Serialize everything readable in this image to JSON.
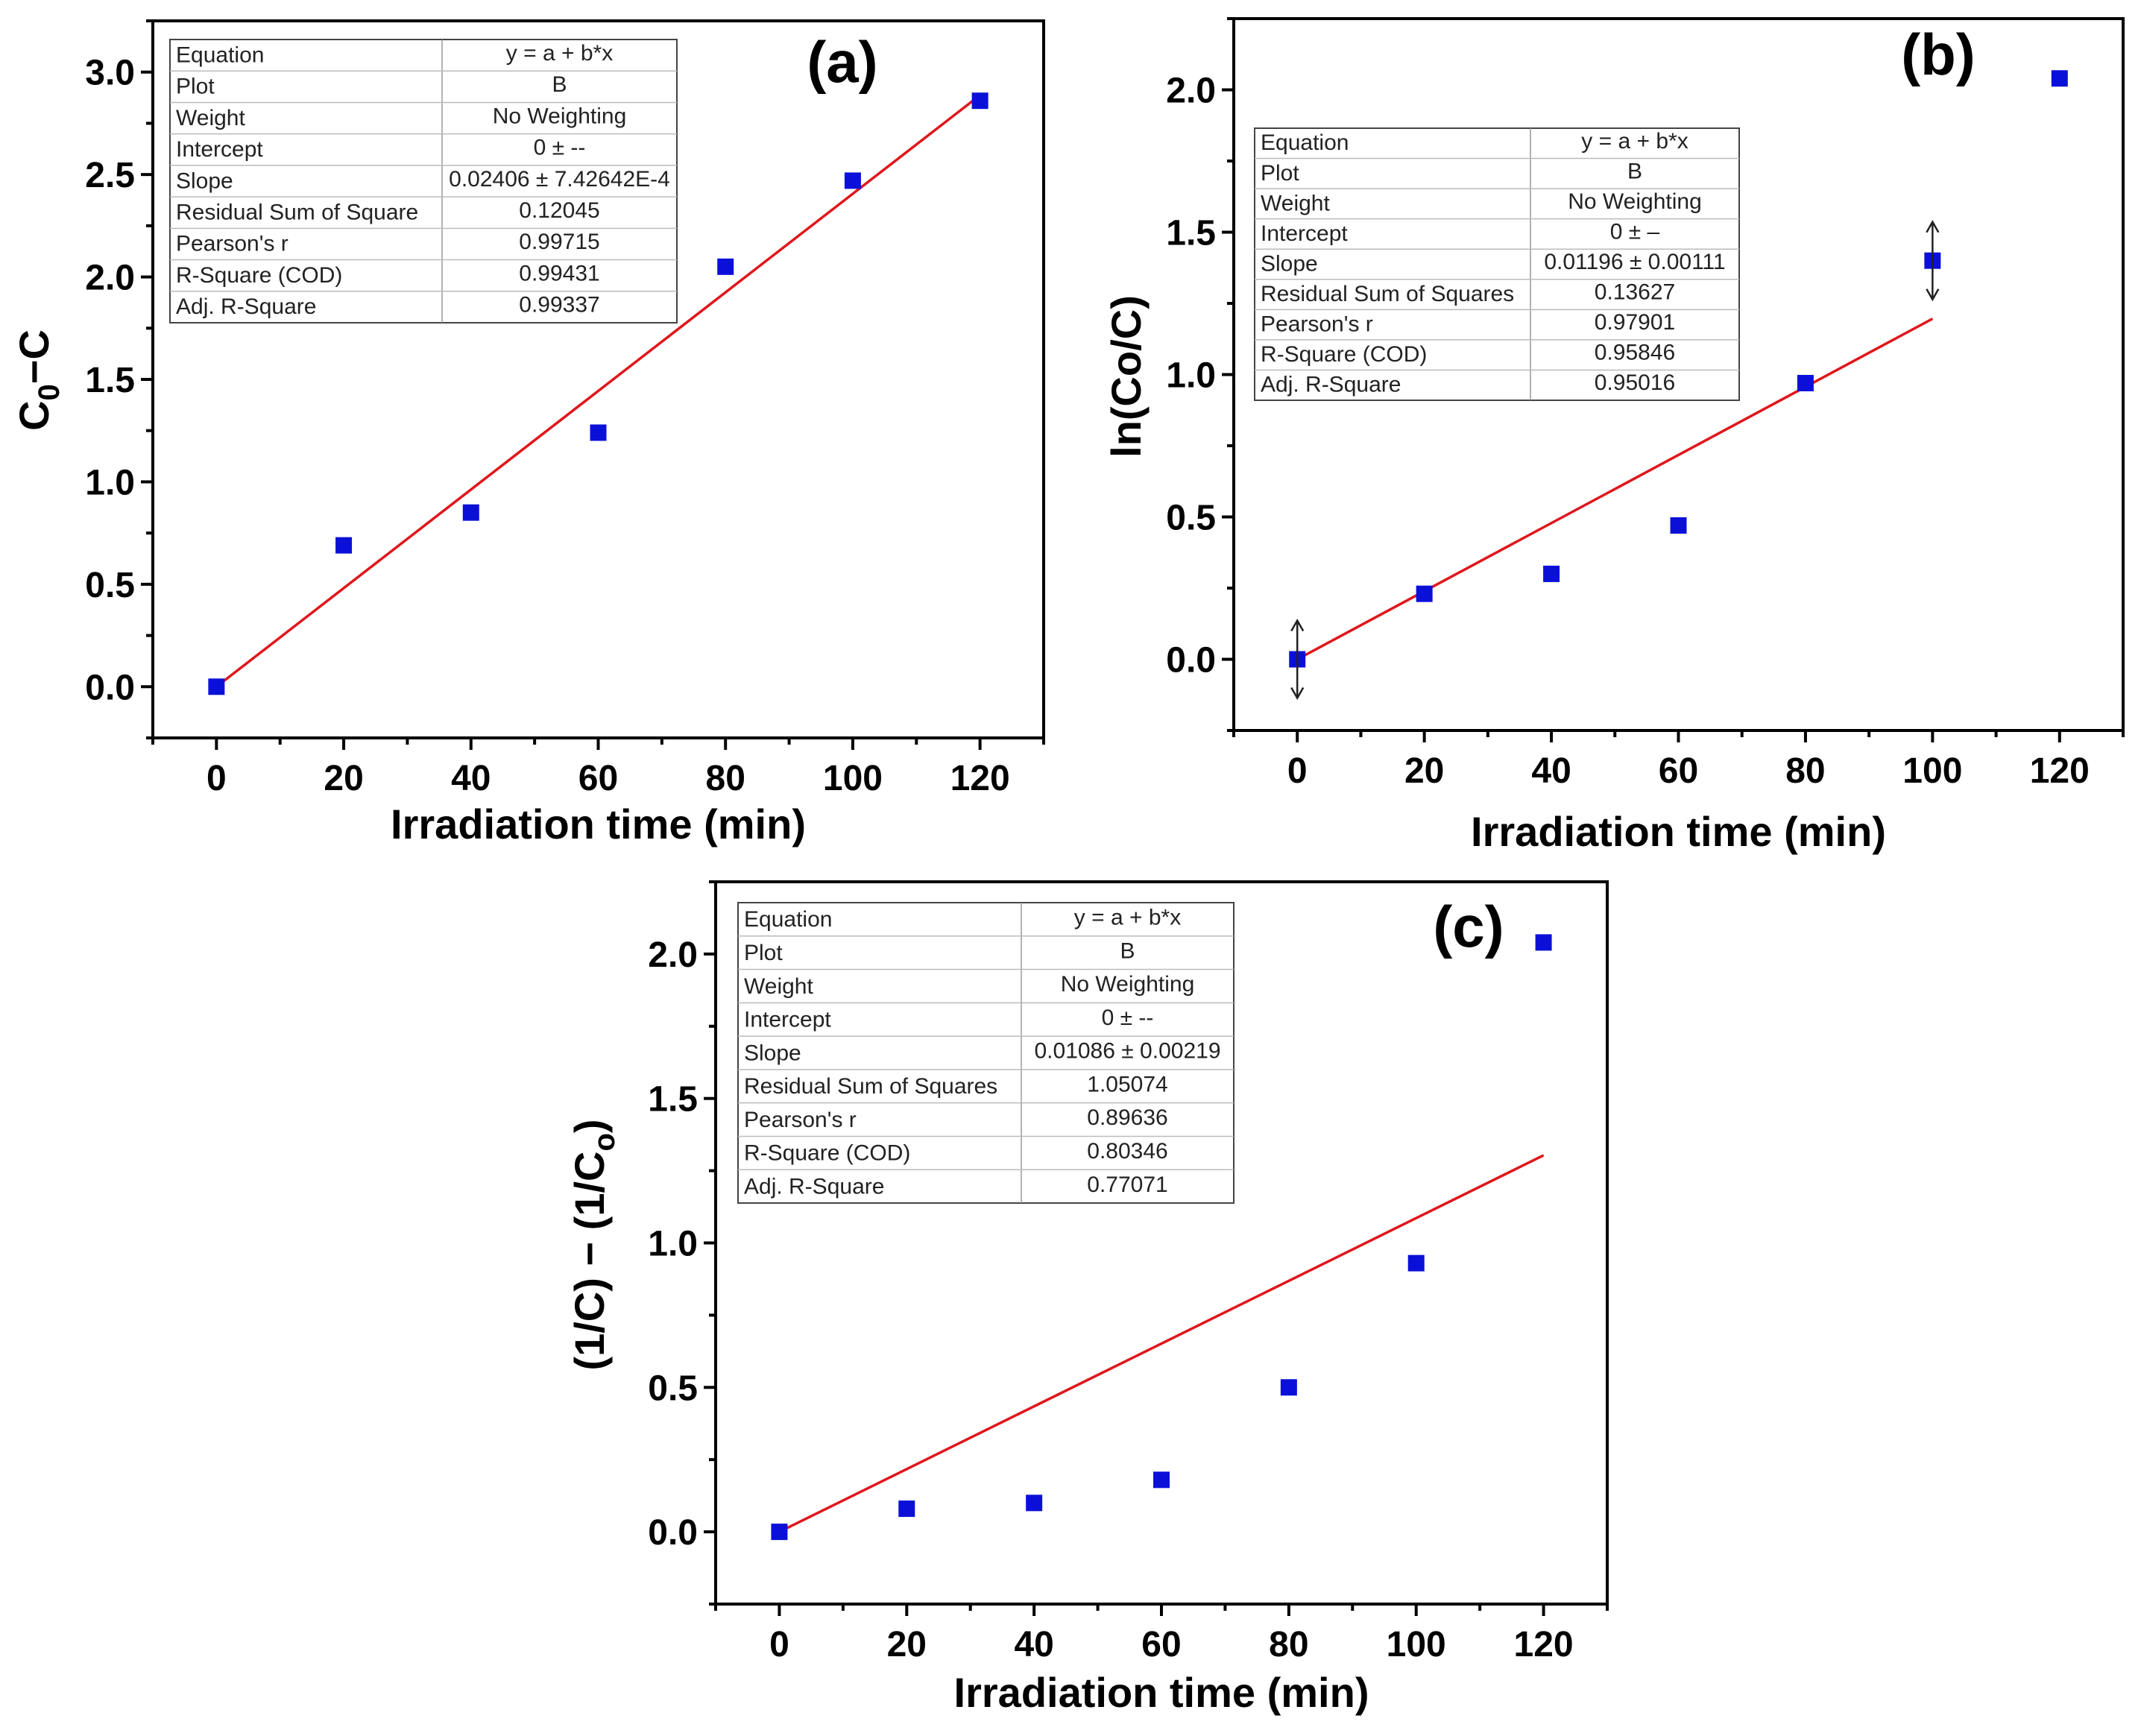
{
  "chart_data": [
    {
      "panel": "(a)",
      "type": "scatter",
      "xlabel": "Irradiation time (min)",
      "ylabel": "C0−C",
      "ylabel_main": "C",
      "ylabel_sub": "0",
      "ylabel_tail": "−C",
      "xlim": [
        -10,
        130
      ],
      "ylim": [
        -0.25,
        3.25
      ],
      "xticks": [
        0,
        20,
        40,
        60,
        80,
        100,
        120
      ],
      "xtick_labels": [
        "0",
        "20",
        "40",
        "60",
        "80",
        "100",
        "120"
      ],
      "yticks": [
        0,
        0.5,
        1,
        1.5,
        2,
        2.5,
        3
      ],
      "ytick_labels": [
        "0.0",
        "0.5",
        "1.0",
        "1.5",
        "2.0",
        "2.5",
        "3.0"
      ],
      "series": [
        {
          "name": "B",
          "color": "#0b10d8",
          "x": [
            0,
            20,
            40,
            60,
            80,
            100,
            120
          ],
          "y": [
            0.0,
            0.69,
            0.85,
            1.24,
            2.05,
            2.47,
            2.86
          ]
        }
      ],
      "fit": {
        "color": "#e0161b",
        "intercept": 0,
        "slope": 0.02406,
        "x_range": [
          0,
          120
        ]
      },
      "fit_table": [
        [
          "Equation",
          "y = a + b*x"
        ],
        [
          "Plot",
          "B"
        ],
        [
          "Weight",
          "No Weighting"
        ],
        [
          "Intercept",
          "0 ± --"
        ],
        [
          "Slope",
          "0.02406 ± 7.42642E-4"
        ],
        [
          "Residual Sum of Square",
          "0.12045"
        ],
        [
          "Pearson's r",
          "0.99715"
        ],
        [
          "R-Square (COD)",
          "0.99431"
        ],
        [
          "Adj. R-Square",
          "0.99337"
        ]
      ]
    },
    {
      "panel": "(b)",
      "type": "scatter",
      "xlabel": "Irradiation time (min)",
      "ylabel": "ln(Co/C)",
      "ylabel_main": "ln(Co/C)",
      "ylabel_sub": "",
      "ylabel_tail": "",
      "xlim": [
        -10,
        130
      ],
      "ylim": [
        -0.25,
        2.25
      ],
      "xticks": [
        0,
        20,
        40,
        60,
        80,
        100,
        120
      ],
      "xtick_labels": [
        "0",
        "20",
        "40",
        "60",
        "80",
        "100",
        "120"
      ],
      "yticks": [
        0,
        0.5,
        1,
        1.5,
        2
      ],
      "ytick_labels": [
        "0.0",
        "0.5",
        "1.0",
        "1.5",
        "2.0"
      ],
      "series": [
        {
          "name": "B",
          "color": "#0b10d8",
          "x": [
            0,
            20,
            40,
            60,
            80,
            100,
            120
          ],
          "y": [
            0.0,
            0.23,
            0.3,
            0.47,
            0.97,
            1.4,
            2.04
          ]
        }
      ],
      "fit": {
        "color": "#e0161b",
        "intercept": 0,
        "slope": 0.01196,
        "x_range": [
          0,
          100
        ]
      },
      "excluded_markers_x": [
        0,
        100
      ],
      "fit_table": [
        [
          "Equation",
          "y = a + b*x"
        ],
        [
          "Plot",
          "B"
        ],
        [
          "Weight",
          "No Weighting"
        ],
        [
          "Intercept",
          "0 ± –"
        ],
        [
          "Slope",
          "0.01196 ± 0.00111"
        ],
        [
          "Residual Sum of Squares",
          "0.13627"
        ],
        [
          "Pearson's r",
          "0.97901"
        ],
        [
          "R-Square (COD)",
          "0.95846"
        ],
        [
          "Adj. R-Square",
          "0.95016"
        ]
      ]
    },
    {
      "panel": "(c)",
      "type": "scatter",
      "xlabel": "Irradiation time (min)",
      "ylabel": "(1/C) − (1/Co)",
      "ylabel_main": "(1/C) − (1/C",
      "ylabel_sub": "o",
      "ylabel_tail": ")",
      "xlim": [
        -10,
        130
      ],
      "ylim": [
        -0.25,
        2.25
      ],
      "xticks": [
        0,
        20,
        40,
        60,
        80,
        100,
        120
      ],
      "xtick_labels": [
        "0",
        "20",
        "40",
        "60",
        "80",
        "100",
        "120"
      ],
      "yticks": [
        0,
        0.5,
        1,
        1.5,
        2
      ],
      "ytick_labels": [
        "0.0",
        "0.5",
        "1.0",
        "1.5",
        "2.0"
      ],
      "series": [
        {
          "name": "B",
          "color": "#0b10d8",
          "x": [
            0,
            20,
            40,
            60,
            80,
            100,
            120
          ],
          "y": [
            0.0,
            0.08,
            0.1,
            0.18,
            0.5,
            0.93,
            2.04
          ]
        }
      ],
      "fit": {
        "color": "#e0161b",
        "intercept": 0,
        "slope": 0.01086,
        "x_range": [
          0,
          120
        ]
      },
      "fit_table": [
        [
          "Equation",
          "y = a + b*x"
        ],
        [
          "Plot",
          "B"
        ],
        [
          "Weight",
          "No Weighting"
        ],
        [
          "Intercept",
          "0 ± --"
        ],
        [
          "Slope",
          "0.01086 ± 0.00219"
        ],
        [
          "Residual Sum of Squares",
          "1.05074"
        ],
        [
          "Pearson's r",
          "0.89636"
        ],
        [
          "R-Square (COD)",
          "0.80346"
        ],
        [
          "Adj. R-Square",
          "0.77071"
        ]
      ]
    }
  ]
}
